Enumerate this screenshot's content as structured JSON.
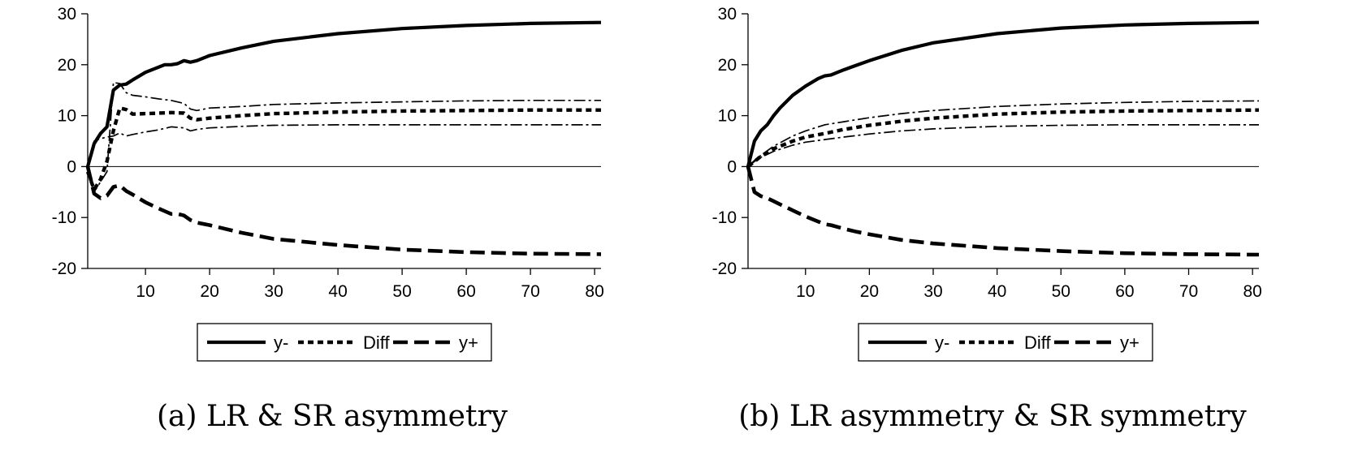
{
  "chart_data": [
    {
      "type": "line",
      "caption": "(a) LR & SR asymmetry",
      "xlim": [
        1,
        81
      ],
      "ylim": [
        -20,
        30
      ],
      "xticks": [
        10,
        20,
        30,
        40,
        50,
        60,
        70,
        80
      ],
      "yticks": [
        30,
        20,
        10,
        0,
        -10,
        -20
      ],
      "zero_line": true,
      "legend_position": "bottom-center",
      "legend": [
        {
          "label": "y-",
          "style": "solid"
        },
        {
          "label": "Diff",
          "style": "dotted"
        },
        {
          "label": "y+",
          "style": "dashed"
        }
      ],
      "series": [
        {
          "name": "y-",
          "style": "solid",
          "x": [
            1,
            2,
            3,
            4,
            5,
            6,
            7,
            8,
            10,
            12,
            13,
            14,
            15,
            16,
            17,
            18,
            20,
            25,
            30,
            40,
            50,
            60,
            70,
            81
          ],
          "y": [
            0,
            4.5,
            6.5,
            7.8,
            15,
            16,
            16.2,
            17,
            18.5,
            19.5,
            20,
            20,
            20.2,
            20.8,
            20.5,
            20.8,
            21.8,
            23.3,
            24.6,
            26.1,
            27.1,
            27.7,
            28.1,
            28.3
          ]
        },
        {
          "name": "Diff",
          "style": "dotted",
          "x": [
            1,
            2,
            3,
            4,
            5,
            6,
            7,
            8,
            10,
            12,
            14,
            16,
            17,
            18,
            20,
            25,
            30,
            40,
            50,
            60,
            70,
            81
          ],
          "y": [
            -1,
            -4.5,
            -2.5,
            1,
            7,
            11.5,
            11.2,
            10.3,
            10.4,
            10.5,
            10.6,
            10.5,
            9.5,
            9.2,
            9.5,
            10,
            10.4,
            10.7,
            10.9,
            11,
            11.1,
            11.1
          ]
        },
        {
          "name": "y+",
          "style": "dashed",
          "x": [
            1,
            2,
            3,
            4,
            5,
            6,
            7,
            8,
            10,
            12,
            14,
            15,
            16,
            17,
            18,
            20,
            25,
            30,
            40,
            50,
            60,
            70,
            81
          ],
          "y": [
            0,
            -5.3,
            -6.2,
            -5.7,
            -4,
            -3.7,
            -4.8,
            -5.5,
            -7,
            -8.2,
            -9.3,
            -9.3,
            -9.6,
            -10.5,
            -11,
            -11.5,
            -13,
            -14.2,
            -15.4,
            -16.3,
            -16.8,
            -17.1,
            -17.2
          ]
        },
        {
          "name": "Diff upper band",
          "style": "dashdot",
          "x": [
            1,
            2,
            3,
            4,
            5,
            6,
            7,
            8,
            10,
            12,
            14,
            16,
            17,
            18,
            20,
            25,
            30,
            40,
            50,
            60,
            70,
            81
          ],
          "y": [
            0,
            -5,
            -3,
            -1,
            16.5,
            16.3,
            14.5,
            14,
            13.7,
            13.3,
            13,
            12.4,
            11.3,
            11,
            11.5,
            11.8,
            12.2,
            12.5,
            12.7,
            12.9,
            13,
            13
          ]
        },
        {
          "name": "Diff lower band",
          "style": "dashdot",
          "x": [
            1,
            2,
            3,
            4,
            5,
            6,
            7,
            8,
            10,
            12,
            14,
            16,
            17,
            18,
            20,
            25,
            30,
            40,
            50,
            60,
            70,
            81
          ],
          "y": [
            0,
            5,
            5.5,
            5.8,
            6,
            6.6,
            6,
            6.3,
            6.8,
            7.2,
            7.8,
            7.6,
            7,
            7.3,
            7.6,
            7.9,
            8.1,
            8.2,
            8.2,
            8.2,
            8.2,
            8.2
          ]
        }
      ]
    },
    {
      "type": "line",
      "caption": "(b) LR asymmetry & SR symmetry",
      "xlim": [
        1,
        81
      ],
      "ylim": [
        -20,
        30
      ],
      "xticks": [
        10,
        20,
        30,
        40,
        50,
        60,
        70,
        80
      ],
      "yticks": [
        30,
        20,
        10,
        0,
        -10,
        -20
      ],
      "zero_line": true,
      "legend_position": "bottom-center",
      "legend": [
        {
          "label": "y-",
          "style": "solid"
        },
        {
          "label": "Diff",
          "style": "dotted"
        },
        {
          "label": "y+",
          "style": "dashed"
        }
      ],
      "series": [
        {
          "name": "y-",
          "style": "solid",
          "x": [
            1,
            2,
            3,
            4,
            5,
            6,
            8,
            10,
            12,
            13,
            14,
            15,
            16,
            18,
            20,
            25,
            30,
            40,
            50,
            60,
            70,
            81
          ],
          "y": [
            0,
            5,
            7,
            8.2,
            10,
            11.5,
            14,
            15.8,
            17.3,
            17.8,
            18,
            18.5,
            19,
            19.9,
            20.8,
            22.8,
            24.3,
            26.1,
            27.2,
            27.8,
            28.1,
            28.3
          ]
        },
        {
          "name": "Diff",
          "style": "dotted",
          "x": [
            1,
            2,
            3,
            5,
            8,
            10,
            13,
            16,
            20,
            25,
            30,
            40,
            50,
            60,
            70,
            81
          ],
          "y": [
            0,
            1,
            2,
            3.5,
            5,
            5.8,
            6.5,
            7.3,
            8.1,
            8.9,
            9.5,
            10.3,
            10.7,
            10.9,
            11,
            11.1
          ]
        },
        {
          "name": "y+",
          "style": "dashed",
          "x": [
            1,
            2,
            3,
            4,
            5,
            6,
            8,
            10,
            12,
            13,
            14,
            16,
            18,
            20,
            25,
            30,
            40,
            50,
            60,
            70,
            81
          ],
          "y": [
            0,
            -5,
            -5.8,
            -6.2,
            -6.8,
            -7.4,
            -8.6,
            -9.8,
            -10.8,
            -11.3,
            -11.5,
            -12.2,
            -12.8,
            -13.3,
            -14.4,
            -15.1,
            -16,
            -16.6,
            -17,
            -17.2,
            -17.3
          ]
        },
        {
          "name": "Diff upper band",
          "style": "dashdot",
          "x": [
            1,
            2,
            3,
            5,
            8,
            10,
            13,
            16,
            20,
            25,
            30,
            40,
            50,
            60,
            70,
            81
          ],
          "y": [
            0,
            1.2,
            2.2,
            4,
            6,
            7,
            8.2,
            8.8,
            9.6,
            10.4,
            11,
            11.8,
            12.3,
            12.6,
            12.8,
            12.9
          ]
        },
        {
          "name": "Diff lower band",
          "style": "dashdot",
          "x": [
            1,
            2,
            3,
            5,
            8,
            10,
            13,
            16,
            20,
            25,
            30,
            40,
            50,
            60,
            70,
            81
          ],
          "y": [
            0,
            1,
            1.8,
            3,
            4.2,
            4.8,
            5.3,
            5.8,
            6.4,
            7,
            7.4,
            7.9,
            8.1,
            8.2,
            8.2,
            8.2
          ]
        }
      ]
    }
  ]
}
